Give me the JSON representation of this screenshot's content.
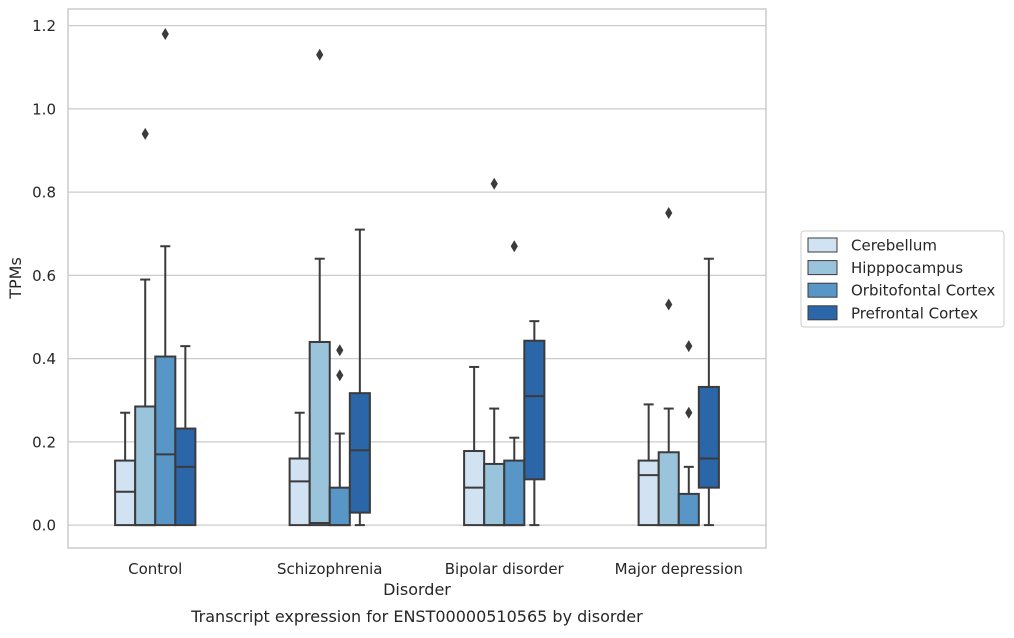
{
  "chart_data": {
    "type": "boxplot",
    "title": "",
    "caption": "Transcript expression for ENST00000510565 by disorder",
    "xlabel": "Disorder",
    "ylabel": "TPMs",
    "ylim": [
      -0.055,
      1.24
    ],
    "yticks": [
      0.0,
      0.2,
      0.4,
      0.6,
      0.8,
      1.0,
      1.2
    ],
    "ytick_labels": [
      "0.0",
      "0.2",
      "0.4",
      "0.6",
      "0.8",
      "1.0",
      "1.2"
    ],
    "grid": "horizontal",
    "legend_position": "right",
    "categories": [
      "Control",
      "Schizophrenia",
      "Bipolar disorder",
      "Major depression"
    ],
    "series": [
      {
        "name": "Cerebellum",
        "color": "#d1e2f2",
        "boxes": [
          {
            "q1": 0.0,
            "median": 0.08,
            "q3": 0.155,
            "whisker_low": 0.0,
            "whisker_high": 0.27,
            "outliers": []
          },
          {
            "q1": 0.0,
            "median": 0.105,
            "q3": 0.16,
            "whisker_low": 0.0,
            "whisker_high": 0.27,
            "outliers": []
          },
          {
            "q1": 0.0,
            "median": 0.09,
            "q3": 0.178,
            "whisker_low": 0.0,
            "whisker_high": 0.38,
            "outliers": []
          },
          {
            "q1": 0.0,
            "median": 0.12,
            "q3": 0.155,
            "whisker_low": 0.0,
            "whisker_high": 0.29,
            "outliers": []
          }
        ]
      },
      {
        "name": "Hipppocampus",
        "color": "#9ac3dc",
        "boxes": [
          {
            "q1": 0.0,
            "median": 0.0,
            "q3": 0.285,
            "whisker_low": 0.0,
            "whisker_high": 0.59,
            "outliers": [
              0.94
            ]
          },
          {
            "q1": 0.0,
            "median": 0.005,
            "q3": 0.44,
            "whisker_low": 0.0,
            "whisker_high": 0.64,
            "outliers": [
              1.13
            ]
          },
          {
            "q1": 0.0,
            "median": 0.0,
            "q3": 0.147,
            "whisker_low": 0.0,
            "whisker_high": 0.28,
            "outliers": [
              0.82
            ]
          },
          {
            "q1": 0.0,
            "median": 0.0,
            "q3": 0.175,
            "whisker_low": 0.0,
            "whisker_high": 0.28,
            "outliers": [
              0.53,
              0.75
            ]
          }
        ]
      },
      {
        "name": "Orbitofontal Cortex",
        "color": "#5796c6",
        "boxes": [
          {
            "q1": 0.0,
            "median": 0.17,
            "q3": 0.405,
            "whisker_low": 0.0,
            "whisker_high": 0.67,
            "outliers": [
              1.18
            ]
          },
          {
            "q1": 0.0,
            "median": 0.0,
            "q3": 0.09,
            "whisker_low": 0.0,
            "whisker_high": 0.22,
            "outliers": [
              0.36,
              0.42
            ]
          },
          {
            "q1": 0.0,
            "median": 0.0,
            "q3": 0.155,
            "whisker_low": 0.0,
            "whisker_high": 0.21,
            "outliers": [
              0.67
            ]
          },
          {
            "q1": 0.0,
            "median": 0.0,
            "q3": 0.075,
            "whisker_low": 0.0,
            "whisker_high": 0.14,
            "outliers": [
              0.27,
              0.43
            ]
          }
        ]
      },
      {
        "name": "Prefrontal Cortex",
        "color": "#2a66a8",
        "boxes": [
          {
            "q1": 0.0,
            "median": 0.14,
            "q3": 0.232,
            "whisker_low": 0.0,
            "whisker_high": 0.43,
            "outliers": []
          },
          {
            "q1": 0.03,
            "median": 0.18,
            "q3": 0.317,
            "whisker_low": 0.0,
            "whisker_high": 0.71,
            "outliers": []
          },
          {
            "q1": 0.11,
            "median": 0.31,
            "q3": 0.443,
            "whisker_low": 0.0,
            "whisker_high": 0.49,
            "outliers": []
          },
          {
            "q1": 0.09,
            "median": 0.16,
            "q3": 0.332,
            "whisker_low": 0.0,
            "whisker_high": 0.64,
            "outliers": []
          }
        ]
      }
    ]
  }
}
